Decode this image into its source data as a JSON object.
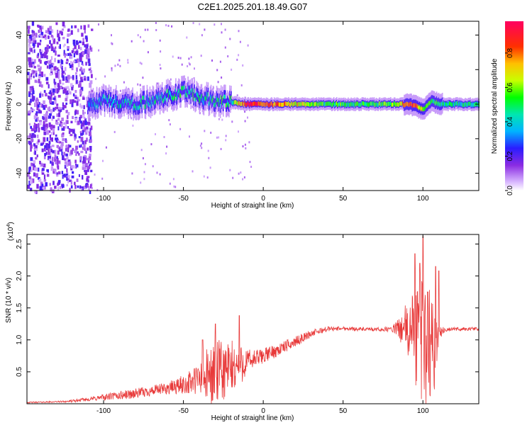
{
  "title": "C2E1.2025.201.18.49.G07",
  "chart_data": [
    {
      "type": "heatmap",
      "xlabel": "Height of straight line (km)",
      "ylabel": "Frequency (Hz)",
      "xlim": [
        -148,
        135
      ],
      "ylim": [
        -50,
        48
      ],
      "x_ticks": [
        -100,
        -50,
        0,
        50,
        100
      ],
      "y_ticks": [
        -40,
        -20,
        0,
        20,
        40
      ],
      "colorbar": {
        "label": "Normalized spectral amplitude",
        "range": [
          0,
          1
        ],
        "ticks": [
          0.0,
          0.2,
          0.4,
          0.6,
          0.8
        ]
      },
      "ridge": {
        "x": [
          -110,
          -100,
          -90,
          -80,
          -70,
          -60,
          -55,
          -50,
          -40,
          -30,
          -20,
          -10,
          0,
          10,
          20,
          40,
          60,
          80,
          90,
          95,
          100,
          105,
          110,
          120,
          135
        ],
        "freq": [
          0,
          2,
          1,
          0,
          2,
          5,
          6,
          8,
          4,
          2,
          1,
          0,
          0,
          0,
          0,
          0,
          0,
          0,
          0,
          -1,
          -3,
          2,
          0,
          0,
          0
        ],
        "amplitude": [
          0.3,
          0.4,
          0.4,
          0.4,
          0.4,
          0.45,
          0.5,
          0.5,
          0.45,
          0.45,
          0.5,
          0.9,
          0.85,
          0.8,
          0.7,
          0.5,
          0.5,
          0.55,
          0.8,
          0.85,
          0.6,
          0.5,
          0.45,
          0.45,
          0.45
        ]
      }
    },
    {
      "type": "line",
      "xlabel": "Height of straight line (km)",
      "ylabel": "SNR (10 * v/v)",
      "multiplier_label": "(x10",
      "multiplier_exp": "4",
      "multiplier_close": ")",
      "xlim": [
        -148,
        135
      ],
      "ylim": [
        0,
        2.65
      ],
      "x_ticks": [
        -100,
        -50,
        0,
        50,
        100
      ],
      "y_ticks": [
        0.5,
        1.0,
        1.5,
        2.0,
        2.5
      ],
      "series": [
        {
          "color": "#e83a3a",
          "envelope": {
            "x": [
              -148,
              -130,
              -120,
              -110,
              -100,
              -90,
              -80,
              -70,
              -60,
              -50,
              -45,
              -40,
              -35,
              -30,
              -25,
              -20,
              -15,
              -10,
              -5,
              0,
              10,
              20,
              30,
              40,
              50,
              60,
              70,
              80,
              85,
              90,
              95,
              100,
              105,
              108,
              110,
              115,
              120,
              125,
              135
            ],
            "mean": [
              0.02,
              0.03,
              0.04,
              0.07,
              0.1,
              0.13,
              0.16,
              0.2,
              0.24,
              0.3,
              0.34,
              0.38,
              0.42,
              0.45,
              0.5,
              0.55,
              0.6,
              0.66,
              0.7,
              0.75,
              0.85,
              0.97,
              1.1,
              1.17,
              1.18,
              1.17,
              1.16,
              1.17,
              1.18,
              1.15,
              1.1,
              1.0,
              0.9,
              1.0,
              1.12,
              1.16,
              1.17,
              1.17,
              1.17
            ],
            "spread": [
              0.01,
              0.01,
              0.02,
              0.03,
              0.05,
              0.07,
              0.08,
              0.08,
              0.1,
              0.15,
              0.2,
              0.3,
              0.45,
              0.55,
              0.5,
              0.45,
              0.35,
              0.2,
              0.15,
              0.12,
              0.1,
              0.08,
              0.06,
              0.04,
              0.03,
              0.03,
              0.03,
              0.04,
              0.15,
              0.45,
              0.8,
              1.1,
              0.9,
              0.7,
              0.1,
              0.03,
              0.03,
              0.03,
              0.03
            ]
          },
          "peaks": [
            [
              -15,
              1.38
            ],
            [
              -38,
              1.0
            ],
            [
              -30,
              1.25
            ],
            [
              95,
              2.35
            ],
            [
              98,
              2.2
            ],
            [
              100,
              2.62
            ],
            [
              103,
              1.75
            ],
            [
              108,
              2.15
            ],
            [
              110,
              2.08
            ]
          ]
        }
      ]
    }
  ]
}
